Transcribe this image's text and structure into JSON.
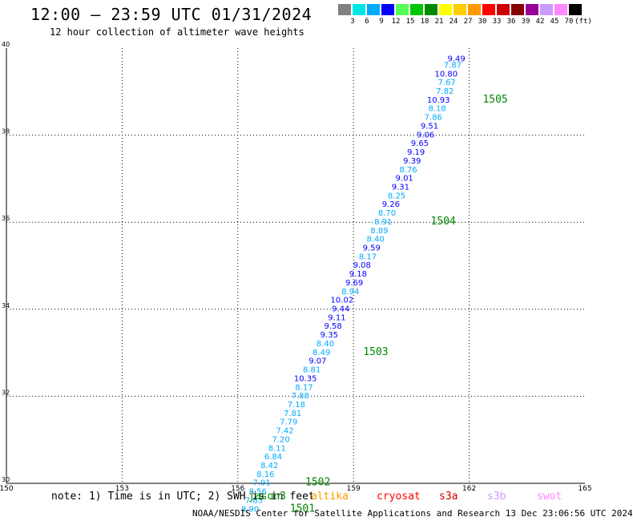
{
  "header": {
    "title": "12:00 – 23:59 UTC 01/31/2024",
    "subtitle": "12 hour collection of altimeter wave heights"
  },
  "colorbar": {
    "labels": [
      "3",
      "6",
      "9",
      "12",
      "15",
      "18",
      "21",
      "24",
      "27",
      "30",
      "33",
      "36",
      "39",
      "42",
      "45",
      "70",
      "(ft)"
    ],
    "colors": [
      "#808080",
      "#00e6e6",
      "#00aaff",
      "#0000ff",
      "#55ff55",
      "#00c800",
      "#008800",
      "#ffff00",
      "#ffcc00",
      "#ff9900",
      "#ff0000",
      "#cc0000",
      "#880000",
      "#990099",
      "#cc99ff",
      "#ff88ff",
      "#000000"
    ]
  },
  "chart_data": {
    "type": "scatter",
    "title": "12:00 – 23:59 UTC 01/31/2024",
    "xlim": [
      150,
      165
    ],
    "ylim": [
      30,
      40
    ],
    "x_ticks": [
      "150",
      "153",
      "156",
      "159",
      "162",
      "165"
    ],
    "y_ticks": [
      "30",
      "32",
      "34",
      "36",
      "38",
      "40"
    ],
    "grid": true,
    "points": [
      {
        "x": 161.9,
        "y": 39.7,
        "value": "9.49",
        "color": "#0000ff"
      },
      {
        "x": 161.8,
        "y": 39.55,
        "value": "7.87",
        "color": "#00aaff"
      },
      {
        "x": 161.7,
        "y": 39.35,
        "value": "10.80",
        "color": "#0000ff"
      },
      {
        "x": 161.65,
        "y": 39.15,
        "value": "7.67",
        "color": "#00aaff"
      },
      {
        "x": 161.6,
        "y": 38.95,
        "value": "7.82",
        "color": "#00aaff"
      },
      {
        "x": 161.5,
        "y": 38.75,
        "value": "10.93",
        "color": "#0000ff"
      },
      {
        "x": 161.4,
        "y": 38.55,
        "value": "8.18",
        "color": "#00aaff"
      },
      {
        "x": 161.3,
        "y": 38.35,
        "value": "7.86",
        "color": "#00aaff"
      },
      {
        "x": 161.2,
        "y": 38.15,
        "value": "9.51",
        "color": "#0000ff"
      },
      {
        "x": 161.1,
        "y": 37.95,
        "value": "9.06",
        "color": "#0000ff"
      },
      {
        "x": 160.95,
        "y": 37.75,
        "value": "9.65",
        "color": "#0000ff"
      },
      {
        "x": 160.85,
        "y": 37.55,
        "value": "9.19",
        "color": "#0000ff"
      },
      {
        "x": 160.75,
        "y": 37.35,
        "value": "9.39",
        "color": "#0000ff"
      },
      {
        "x": 160.65,
        "y": 37.15,
        "value": "8.76",
        "color": "#00aaff"
      },
      {
        "x": 160.55,
        "y": 36.95,
        "value": "9.01",
        "color": "#0000ff"
      },
      {
        "x": 160.45,
        "y": 36.75,
        "value": "9.31",
        "color": "#0000ff"
      },
      {
        "x": 160.35,
        "y": 36.55,
        "value": "8.25",
        "color": "#00aaff"
      },
      {
        "x": 160.2,
        "y": 36.35,
        "value": "9.26",
        "color": "#0000ff"
      },
      {
        "x": 160.1,
        "y": 36.15,
        "value": "8.70",
        "color": "#00aaff"
      },
      {
        "x": 160.0,
        "y": 35.95,
        "value": "8.91",
        "color": "#00aaff"
      },
      {
        "x": 159.9,
        "y": 35.75,
        "value": "8.89",
        "color": "#00aaff"
      },
      {
        "x": 159.8,
        "y": 35.55,
        "value": "8.40",
        "color": "#00aaff"
      },
      {
        "x": 159.7,
        "y": 35.35,
        "value": "9.59",
        "color": "#0000ff"
      },
      {
        "x": 159.6,
        "y": 35.15,
        "value": "8.17",
        "color": "#00aaff"
      },
      {
        "x": 159.45,
        "y": 34.95,
        "value": "9.08",
        "color": "#0000ff"
      },
      {
        "x": 159.35,
        "y": 34.75,
        "value": "9.18",
        "color": "#0000ff"
      },
      {
        "x": 159.25,
        "y": 34.55,
        "value": "9.69",
        "color": "#0000ff"
      },
      {
        "x": 159.15,
        "y": 34.35,
        "value": "8.94",
        "color": "#00aaff"
      },
      {
        "x": 159.0,
        "y": 34.15,
        "value": "10.02",
        "color": "#0000ff"
      },
      {
        "x": 158.9,
        "y": 33.95,
        "value": "9.44",
        "color": "#0000ff"
      },
      {
        "x": 158.8,
        "y": 33.75,
        "value": "9.11",
        "color": "#0000ff"
      },
      {
        "x": 158.7,
        "y": 33.55,
        "value": "9.58",
        "color": "#0000ff"
      },
      {
        "x": 158.6,
        "y": 33.35,
        "value": "9.35",
        "color": "#0000ff"
      },
      {
        "x": 158.5,
        "y": 33.15,
        "value": "8.40",
        "color": "#00aaff"
      },
      {
        "x": 158.4,
        "y": 32.95,
        "value": "8.49",
        "color": "#00aaff"
      },
      {
        "x": 158.3,
        "y": 32.75,
        "value": "9.07",
        "color": "#0000ff"
      },
      {
        "x": 158.15,
        "y": 32.55,
        "value": "8.81",
        "color": "#00aaff"
      },
      {
        "x": 158.05,
        "y": 32.35,
        "value": "10.35",
        "color": "#0000ff"
      },
      {
        "x": 157.95,
        "y": 32.15,
        "value": "8.17",
        "color": "#00aaff"
      },
      {
        "x": 157.85,
        "y": 31.95,
        "value": "7.88",
        "color": "#00aaff"
      },
      {
        "x": 157.75,
        "y": 31.75,
        "value": "7.18",
        "color": "#00aaff"
      },
      {
        "x": 157.65,
        "y": 31.55,
        "value": "7.81",
        "color": "#00aaff"
      },
      {
        "x": 157.55,
        "y": 31.35,
        "value": "7.79",
        "color": "#00aaff"
      },
      {
        "x": 157.45,
        "y": 31.15,
        "value": "7.42",
        "color": "#00aaff"
      },
      {
        "x": 157.35,
        "y": 30.95,
        "value": "7.20",
        "color": "#00aaff"
      },
      {
        "x": 157.25,
        "y": 30.75,
        "value": "8.11",
        "color": "#00aaff"
      },
      {
        "x": 157.15,
        "y": 30.55,
        "value": "6.84",
        "color": "#00aaff"
      },
      {
        "x": 157.05,
        "y": 30.35,
        "value": "8.42",
        "color": "#00aaff"
      },
      {
        "x": 156.95,
        "y": 30.15,
        "value": "8.16",
        "color": "#00aaff"
      },
      {
        "x": 156.85,
        "y": 29.95,
        "value": "7.91",
        "color": "#00aaff"
      },
      {
        "x": 156.75,
        "y": 29.75,
        "value": "8.56",
        "color": "#00aaff"
      },
      {
        "x": 156.65,
        "y": 29.55,
        "value": "7.83",
        "color": "#00aaff"
      },
      {
        "x": 156.55,
        "y": 29.35,
        "value": "8.90",
        "color": "#00aaff"
      }
    ],
    "time_labels": [
      {
        "x": 162.35,
        "y": 38.75,
        "text": "1505"
      },
      {
        "x": 161.0,
        "y": 35.95,
        "text": "1504"
      },
      {
        "x": 159.25,
        "y": 32.95,
        "text": "1503"
      },
      {
        "x": 157.75,
        "y": 29.95,
        "text": "1502"
      },
      {
        "x": 157.35,
        "y": 29.35,
        "text": "1501"
      }
    ],
    "time_label_color": "#008800"
  },
  "footer": {
    "note": "note: 1) Time is in UTC; 2) SWH is in feet",
    "satellites": [
      {
        "name": "jason3",
        "color": "#008800"
      },
      {
        "name": "altika",
        "color": "#ff9900"
      },
      {
        "name": "cryosat",
        "color": "#ff0000"
      },
      {
        "name": "s3a",
        "color": "#cc0000"
      },
      {
        "name": "s3b",
        "color": "#cc99ff"
      },
      {
        "name": "swot",
        "color": "#ff88ff"
      }
    ],
    "credit": "NOAA/NESDIS Center for Satellite Applications and Research   13 Dec 23:06:56 UTC 2024"
  }
}
